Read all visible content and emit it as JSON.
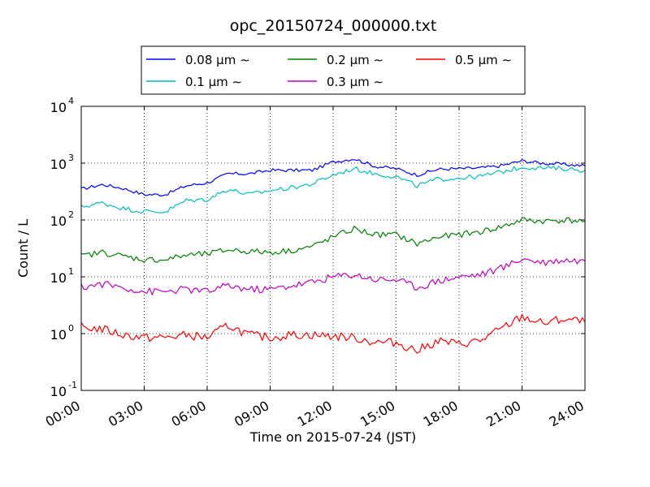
{
  "chart_data": {
    "type": "line",
    "title": "opc_20150724_000000.txt",
    "xlabel": "Time on 2015-07-24 (JST)",
    "ylabel": "Count / L",
    "x_ticks": [
      "00:00",
      "03:00",
      "06:00",
      "09:00",
      "12:00",
      "15:00",
      "18:00",
      "21:00",
      "24:00"
    ],
    "xlim_hours": [
      0,
      24
    ],
    "y_scale": "log",
    "ylim": [
      0.1,
      10000
    ],
    "y_ticks": [
      {
        "base": "10",
        "exp": "-1",
        "value": 0.1
      },
      {
        "base": "10",
        "exp": "0",
        "value": 1
      },
      {
        "base": "10",
        "exp": "1",
        "value": 10
      },
      {
        "base": "10",
        "exp": "2",
        "value": 100
      },
      {
        "base": "10",
        "exp": "3",
        "value": 1000
      },
      {
        "base": "10",
        "exp": "4",
        "value": 10000
      }
    ],
    "grid": true,
    "legend_position": "top-center",
    "x": [
      0,
      1,
      2,
      3,
      4,
      5,
      6,
      7,
      8,
      9,
      10,
      11,
      12,
      13,
      14,
      15,
      16,
      17,
      18,
      19,
      20,
      21,
      22,
      23,
      24
    ],
    "series": [
      {
        "name": "0.08 μm ∼",
        "color": "#0000ff",
        "values": [
          350,
          420,
          360,
          280,
          280,
          400,
          450,
          650,
          650,
          750,
          750,
          750,
          1050,
          1200,
          880,
          800,
          620,
          780,
          800,
          820,
          900,
          1100,
          1000,
          950,
          900
        ]
      },
      {
        "name": "0.1 μm ∼",
        "color": "#00bfbf",
        "values": [
          170,
          200,
          160,
          140,
          140,
          220,
          230,
          350,
          280,
          330,
          370,
          430,
          620,
          800,
          650,
          580,
          400,
          520,
          550,
          580,
          700,
          850,
          820,
          800,
          750
        ]
      },
      {
        "name": "0.2 μm ∼",
        "color": "#008000",
        "values": [
          23,
          27,
          23,
          20,
          20,
          24,
          25,
          30,
          28,
          27,
          29,
          34,
          50,
          70,
          55,
          55,
          38,
          50,
          55,
          62,
          75,
          100,
          95,
          100,
          95
        ]
      },
      {
        "name": "0.3 μm ∼",
        "color": "#bf00bf",
        "values": [
          6.5,
          7.5,
          6.5,
          5.5,
          5.5,
          6.0,
          5.5,
          7.0,
          6.0,
          6.0,
          7.0,
          8.0,
          10,
          11,
          9.0,
          9.0,
          6.5,
          8.5,
          10,
          11,
          14,
          21,
          18,
          20,
          19
        ]
      },
      {
        "name": "0.5 μm ∼",
        "color": "#ff0000",
        "values": [
          1.3,
          1.2,
          0.95,
          0.85,
          0.85,
          0.95,
          0.85,
          1.4,
          0.95,
          0.85,
          0.95,
          0.95,
          0.9,
          0.85,
          0.7,
          0.7,
          0.5,
          0.75,
          0.65,
          0.75,
          1.2,
          2.0,
          1.5,
          1.8,
          1.6
        ]
      }
    ]
  }
}
